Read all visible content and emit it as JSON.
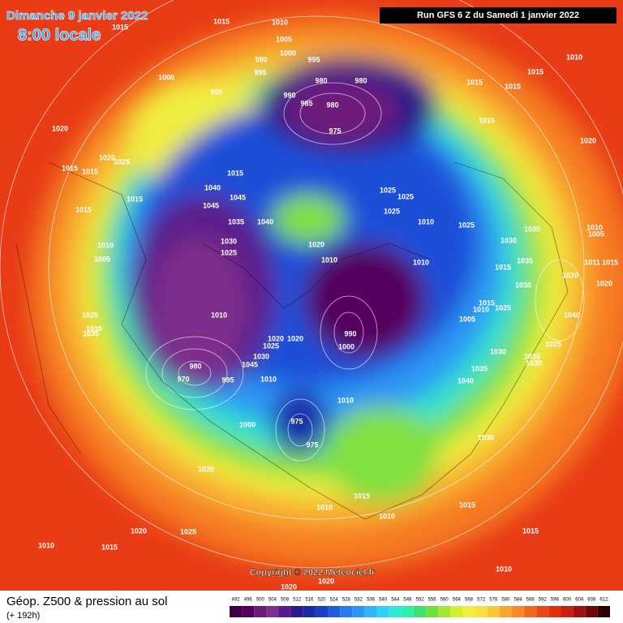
{
  "header": {
    "date": "Dimanche 9 janvier 2022",
    "time": "8:00 locale",
    "run": "Run GFS 6 Z du Samedi 1 janvier 2022"
  },
  "map": {
    "isobar_labels": [
      1015,
      1010,
      1015,
      1005,
      1000,
      990,
      995,
      995,
      1000,
      995,
      980,
      980,
      990,
      985,
      980,
      975,
      1010,
      1015,
      1015,
      1015,
      1015,
      1020,
      1020,
      1020,
      1025,
      1015,
      1015,
      1015,
      1040,
      1025,
      1025,
      1045,
      1015,
      1045,
      1015,
      1025,
      1035,
      1040,
      1010,
      1025,
      1035,
      1010,
      1005,
      1030,
      1030,
      1020,
      1010,
      1025,
      1005,
      1010,
      1010,
      1035,
      1015,
      1011,
      1015,
      1020,
      1020,
      1030,
      1010,
      1015,
      1010,
      1025,
      1040,
      1005,
      1025,
      1030,
      1035,
      990,
      1000,
      1020,
      1020,
      1025,
      1030,
      1030,
      1025,
      1035,
      1030,
      980,
      1045,
      1035,
      995,
      970,
      1010,
      1040,
      1010,
      975,
      1000,
      975,
      1030,
      1020,
      1015,
      1015,
      1010,
      1010,
      1020,
      1025,
      1015,
      1010,
      1015,
      1010,
      1020,
      1020
    ],
    "copyright": "Copyright © 2022 Meteociel.fr"
  },
  "footer": {
    "title": "Géop. Z500 & pression au sol",
    "lead": "(+ 192h)"
  },
  "colorbar": {
    "ticks": [
      492,
      496,
      500,
      504,
      508,
      512,
      516,
      520,
      524,
      528,
      532,
      536,
      540,
      544,
      548,
      552,
      556,
      560,
      564,
      568,
      572,
      576,
      580,
      584,
      588,
      592,
      596,
      600,
      604,
      608,
      612
    ],
    "colors": [
      "#3a0040",
      "#55005e",
      "#6e1a7a",
      "#7d2f8c",
      "#5b1a8a",
      "#2a1a8a",
      "#1a2aa8",
      "#1a3fc4",
      "#1f5ae0",
      "#2a78f0",
      "#2f95f5",
      "#30b4f5",
      "#2fd2f0",
      "#2fe8d8",
      "#30f0a8",
      "#40e070",
      "#70e040",
      "#a0e830",
      "#d0f030",
      "#f0f040",
      "#f8e040",
      "#f8c838",
      "#f8a830",
      "#f88828",
      "#f06820",
      "#e84818",
      "#e03010",
      "#c82010",
      "#a01010",
      "#700808",
      "#300000"
    ]
  }
}
